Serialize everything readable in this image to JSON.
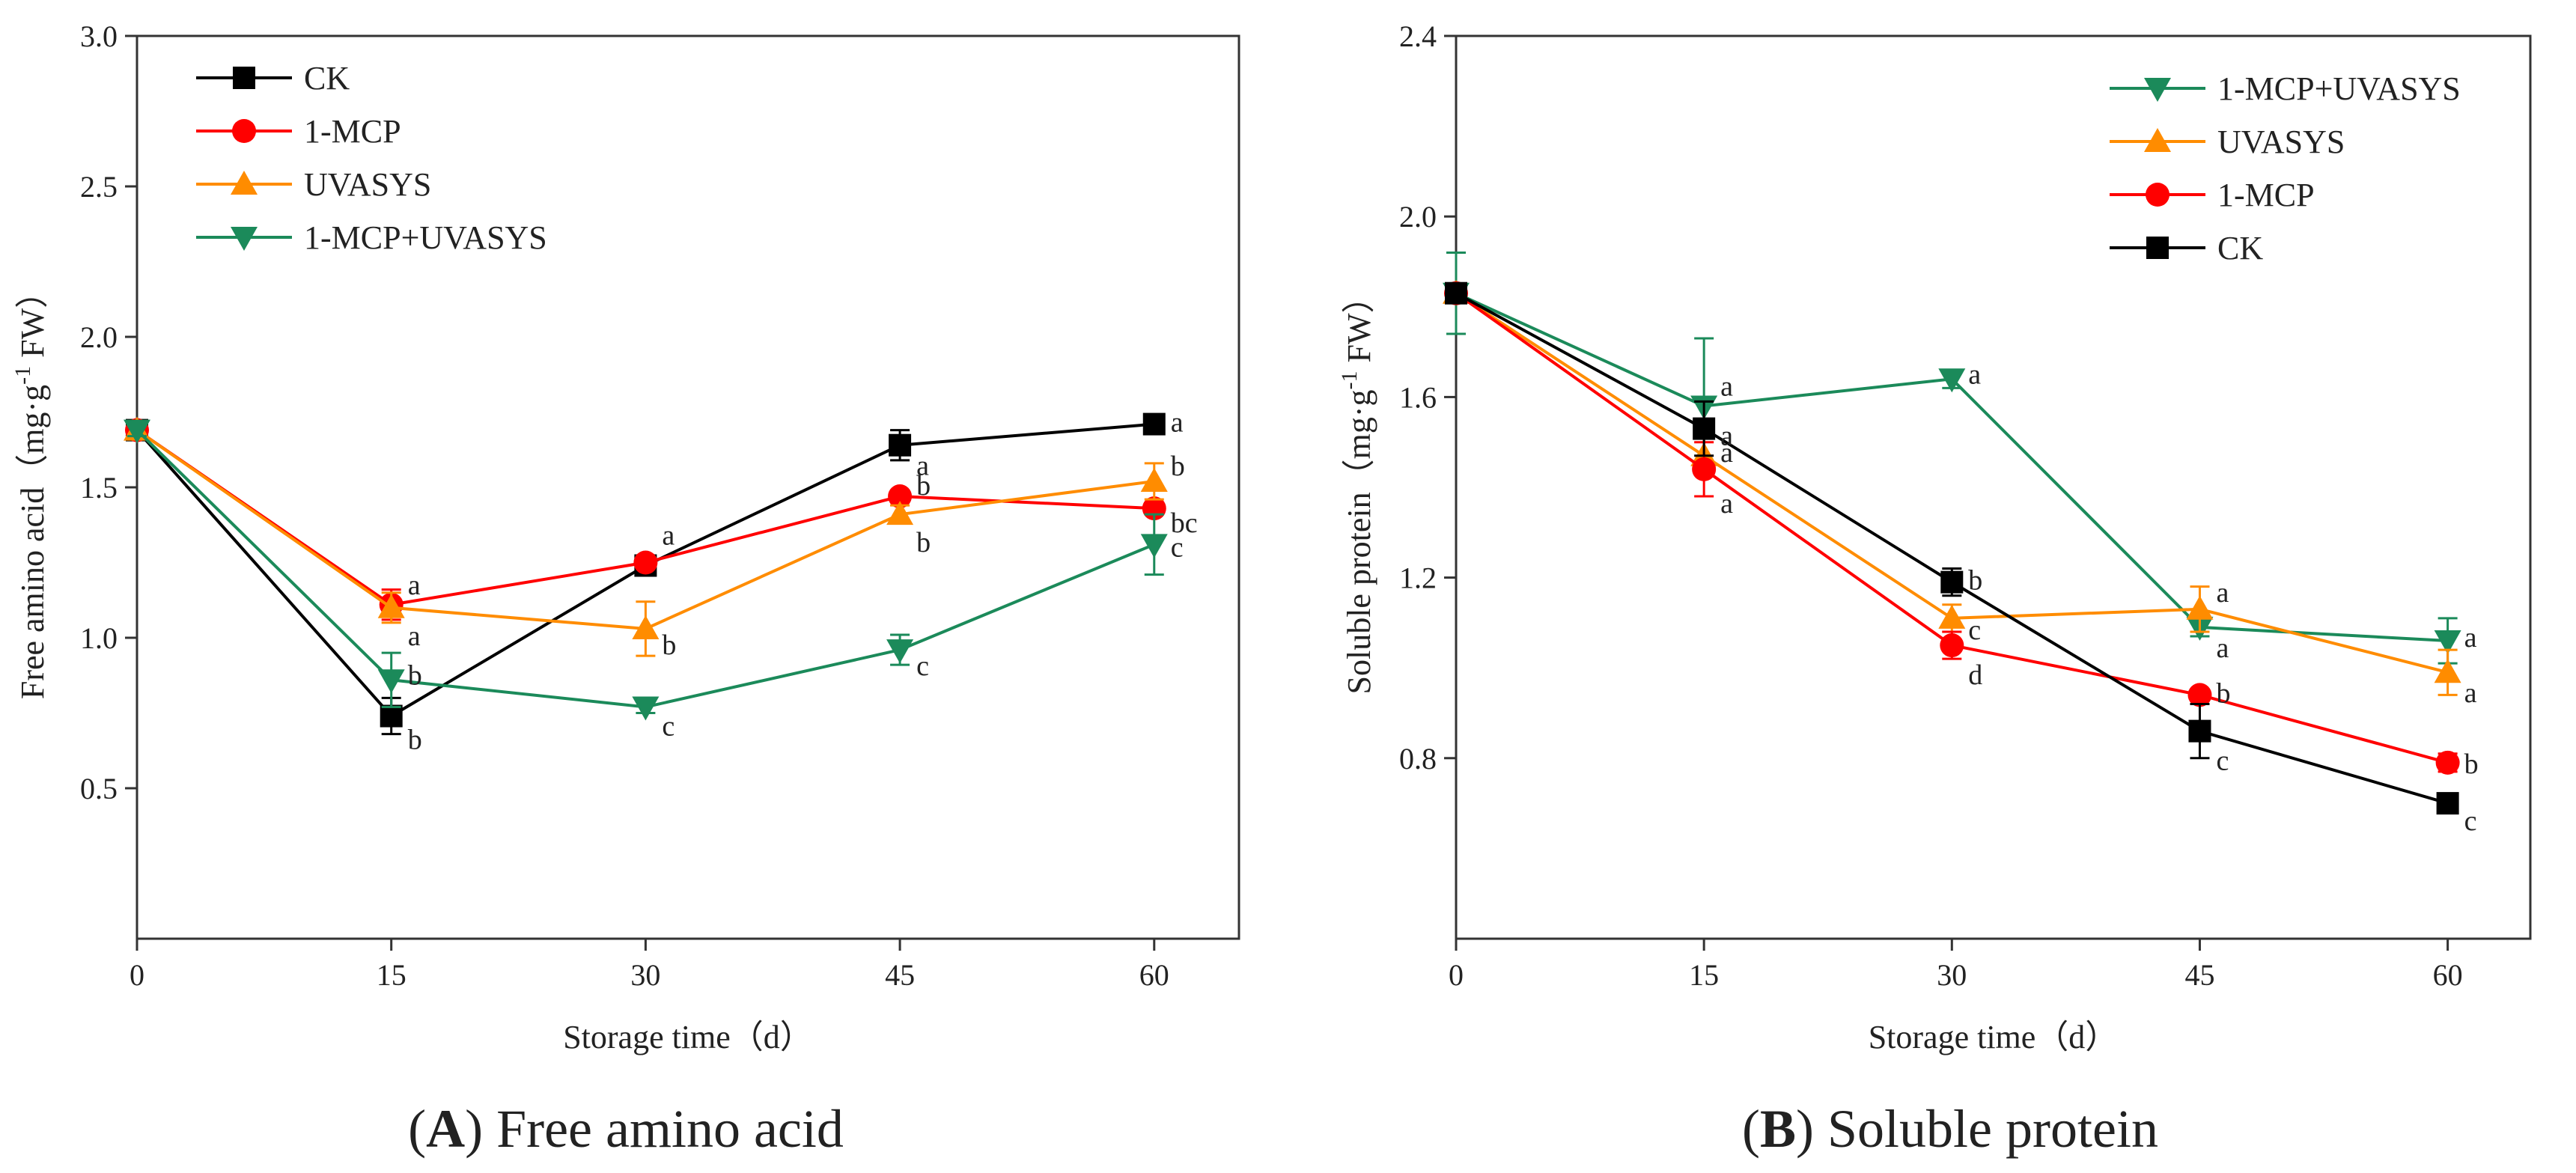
{
  "colors": {
    "CK": "#000000",
    "1-MCP": "#ff0000",
    "UVASYS": "#ff8c00",
    "1-MCP+UVASYS": "#1b8a5a"
  },
  "markers": {
    "CK": "square",
    "1-MCP": "circle",
    "UVASYS": "triangle-up",
    "1-MCP+UVASYS": "triangle-down"
  },
  "panels": [
    {
      "caption_letter": "A",
      "caption_text": "Free amino acid",
      "xlabel": "Storage time（d）",
      "ylabel_main": "Free amino acid（mg·g",
      "ylabel_sup": "-1",
      "ylabel_tail": " FW）",
      "legend": [
        "CK",
        "1-MCP",
        "UVASYS",
        "1-MCP+UVASYS"
      ]
    },
    {
      "caption_letter": "B",
      "caption_text": "Soluble protein",
      "xlabel": "Storage time（d）",
      "ylabel_main": "Soluble protein（mg·g",
      "ylabel_sup": "-1",
      "ylabel_tail": " FW）",
      "legend": [
        "1-MCP+UVASYS",
        "UVASYS",
        "1-MCP",
        "CK"
      ]
    }
  ],
  "chart_data": [
    {
      "type": "line",
      "title": "Free amino acid",
      "xlabel": "Storage time（d）",
      "ylabel": "Free amino acid（mg·g-1 FW）",
      "x": [
        0,
        15,
        30,
        45,
        60
      ],
      "xlim": [
        0,
        65
      ],
      "ylim": [
        0.0,
        3.0
      ],
      "xticks": [
        0,
        15,
        30,
        45,
        60
      ],
      "yticks": [
        0.5,
        1.0,
        1.5,
        2.0,
        2.5,
        3.0
      ],
      "ytick_labels": [
        "0.5",
        "1.0",
        "1.5",
        "2.0",
        "2.5",
        "3.0"
      ],
      "grid": false,
      "legend_position": "top-left",
      "series": [
        {
          "name": "CK",
          "values": [
            1.69,
            0.74,
            1.24,
            1.64,
            1.71
          ],
          "errors": [
            0.02,
            0.06,
            0.02,
            0.05,
            0.03
          ],
          "letters": [
            "",
            "b",
            "a",
            "a",
            "a"
          ]
        },
        {
          "name": "1-MCP",
          "values": [
            1.69,
            1.11,
            1.25,
            1.47,
            1.43
          ],
          "errors": [
            0.02,
            0.05,
            0.02,
            0.02,
            0.02
          ],
          "letters": [
            "",
            "a",
            "",
            "b",
            "bc"
          ]
        },
        {
          "name": "UVASYS",
          "values": [
            1.69,
            1.1,
            1.03,
            1.41,
            1.52
          ],
          "errors": [
            0.02,
            0.05,
            0.09,
            0.03,
            0.06
          ],
          "letters": [
            "",
            "a",
            "b",
            "b",
            "b"
          ]
        },
        {
          "name": "1-MCP+UVASYS",
          "values": [
            1.69,
            0.86,
            0.77,
            0.96,
            1.31
          ],
          "errors": [
            0.02,
            0.09,
            0.02,
            0.05,
            0.1
          ],
          "letters": [
            "",
            "b",
            "c",
            "c",
            "c"
          ]
        }
      ]
    },
    {
      "type": "line",
      "title": "Soluble protein",
      "xlabel": "Storage time（d）",
      "ylabel": "Soluble protein（mg·g-1 FW）",
      "x": [
        0,
        15,
        30,
        45,
        60
      ],
      "xlim": [
        0,
        65
      ],
      "ylim": [
        0.4,
        2.4
      ],
      "xticks": [
        0,
        15,
        30,
        45,
        60
      ],
      "yticks": [
        0.8,
        1.2,
        1.6,
        2.0,
        2.4
      ],
      "ytick_labels": [
        "0.8",
        "1.2",
        "1.6",
        "2.0",
        "2.4"
      ],
      "grid": false,
      "legend_position": "top-right",
      "series": [
        {
          "name": "1-MCP+UVASYS",
          "values": [
            1.83,
            1.58,
            1.64,
            1.09,
            1.06
          ],
          "errors": [
            0.09,
            0.15,
            0.02,
            0.02,
            0.05
          ],
          "letters": [
            "",
            "a",
            "a",
            "a",
            "a"
          ]
        },
        {
          "name": "UVASYS",
          "values": [
            1.83,
            1.47,
            1.11,
            1.13,
            0.99
          ],
          "errors": [
            0.02,
            0.04,
            0.03,
            0.05,
            0.05
          ],
          "letters": [
            "",
            "a",
            "c",
            "a",
            "a"
          ]
        },
        {
          "name": "1-MCP",
          "values": [
            1.83,
            1.44,
            1.05,
            0.94,
            0.79
          ],
          "errors": [
            0.02,
            0.06,
            0.03,
            0.01,
            0.02
          ],
          "letters": [
            "",
            "a",
            "d",
            "b",
            "b"
          ]
        },
        {
          "name": "CK",
          "values": [
            1.83,
            1.53,
            1.19,
            0.86,
            0.7
          ],
          "errors": [
            0.02,
            0.06,
            0.03,
            0.06,
            0.01
          ],
          "letters": [
            "",
            "a",
            "b",
            "c",
            "c"
          ]
        }
      ]
    }
  ]
}
